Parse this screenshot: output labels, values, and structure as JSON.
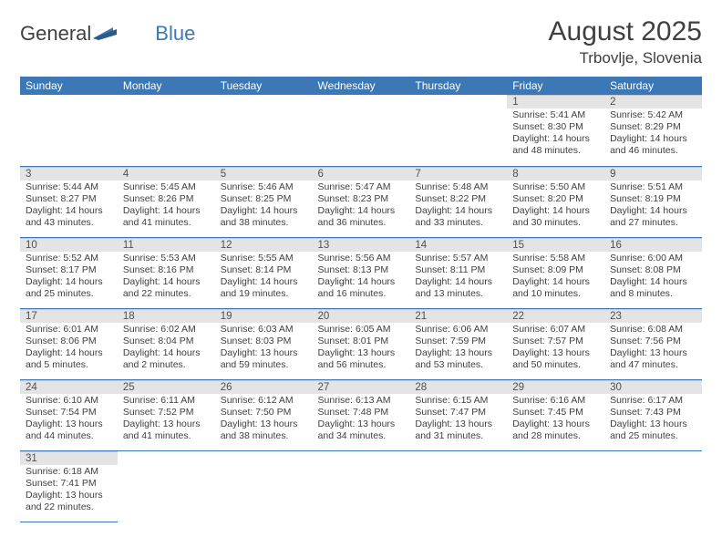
{
  "logo": {
    "text1": "General",
    "text2": "Blue"
  },
  "title": "August 2025",
  "location": "Trbovlje, Slovenia",
  "colors": {
    "header_bg": "#3b78b5",
    "header_fg": "#ffffff",
    "daynum_bg": "#e4e4e4",
    "row_border": "#3b78b5",
    "text": "#404040"
  },
  "weekdays": [
    "Sunday",
    "Monday",
    "Tuesday",
    "Wednesday",
    "Thursday",
    "Friday",
    "Saturday"
  ],
  "weeks": [
    [
      null,
      null,
      null,
      null,
      null,
      {
        "n": "1",
        "sr": "Sunrise: 5:41 AM",
        "ss": "Sunset: 8:30 PM",
        "d1": "Daylight: 14 hours",
        "d2": "and 48 minutes."
      },
      {
        "n": "2",
        "sr": "Sunrise: 5:42 AM",
        "ss": "Sunset: 8:29 PM",
        "d1": "Daylight: 14 hours",
        "d2": "and 46 minutes."
      }
    ],
    [
      {
        "n": "3",
        "sr": "Sunrise: 5:44 AM",
        "ss": "Sunset: 8:27 PM",
        "d1": "Daylight: 14 hours",
        "d2": "and 43 minutes."
      },
      {
        "n": "4",
        "sr": "Sunrise: 5:45 AM",
        "ss": "Sunset: 8:26 PM",
        "d1": "Daylight: 14 hours",
        "d2": "and 41 minutes."
      },
      {
        "n": "5",
        "sr": "Sunrise: 5:46 AM",
        "ss": "Sunset: 8:25 PM",
        "d1": "Daylight: 14 hours",
        "d2": "and 38 minutes."
      },
      {
        "n": "6",
        "sr": "Sunrise: 5:47 AM",
        "ss": "Sunset: 8:23 PM",
        "d1": "Daylight: 14 hours",
        "d2": "and 36 minutes."
      },
      {
        "n": "7",
        "sr": "Sunrise: 5:48 AM",
        "ss": "Sunset: 8:22 PM",
        "d1": "Daylight: 14 hours",
        "d2": "and 33 minutes."
      },
      {
        "n": "8",
        "sr": "Sunrise: 5:50 AM",
        "ss": "Sunset: 8:20 PM",
        "d1": "Daylight: 14 hours",
        "d2": "and 30 minutes."
      },
      {
        "n": "9",
        "sr": "Sunrise: 5:51 AM",
        "ss": "Sunset: 8:19 PM",
        "d1": "Daylight: 14 hours",
        "d2": "and 27 minutes."
      }
    ],
    [
      {
        "n": "10",
        "sr": "Sunrise: 5:52 AM",
        "ss": "Sunset: 8:17 PM",
        "d1": "Daylight: 14 hours",
        "d2": "and 25 minutes."
      },
      {
        "n": "11",
        "sr": "Sunrise: 5:53 AM",
        "ss": "Sunset: 8:16 PM",
        "d1": "Daylight: 14 hours",
        "d2": "and 22 minutes."
      },
      {
        "n": "12",
        "sr": "Sunrise: 5:55 AM",
        "ss": "Sunset: 8:14 PM",
        "d1": "Daylight: 14 hours",
        "d2": "and 19 minutes."
      },
      {
        "n": "13",
        "sr": "Sunrise: 5:56 AM",
        "ss": "Sunset: 8:13 PM",
        "d1": "Daylight: 14 hours",
        "d2": "and 16 minutes."
      },
      {
        "n": "14",
        "sr": "Sunrise: 5:57 AM",
        "ss": "Sunset: 8:11 PM",
        "d1": "Daylight: 14 hours",
        "d2": "and 13 minutes."
      },
      {
        "n": "15",
        "sr": "Sunrise: 5:58 AM",
        "ss": "Sunset: 8:09 PM",
        "d1": "Daylight: 14 hours",
        "d2": "and 10 minutes."
      },
      {
        "n": "16",
        "sr": "Sunrise: 6:00 AM",
        "ss": "Sunset: 8:08 PM",
        "d1": "Daylight: 14 hours",
        "d2": "and 8 minutes."
      }
    ],
    [
      {
        "n": "17",
        "sr": "Sunrise: 6:01 AM",
        "ss": "Sunset: 8:06 PM",
        "d1": "Daylight: 14 hours",
        "d2": "and 5 minutes."
      },
      {
        "n": "18",
        "sr": "Sunrise: 6:02 AM",
        "ss": "Sunset: 8:04 PM",
        "d1": "Daylight: 14 hours",
        "d2": "and 2 minutes."
      },
      {
        "n": "19",
        "sr": "Sunrise: 6:03 AM",
        "ss": "Sunset: 8:03 PM",
        "d1": "Daylight: 13 hours",
        "d2": "and 59 minutes."
      },
      {
        "n": "20",
        "sr": "Sunrise: 6:05 AM",
        "ss": "Sunset: 8:01 PM",
        "d1": "Daylight: 13 hours",
        "d2": "and 56 minutes."
      },
      {
        "n": "21",
        "sr": "Sunrise: 6:06 AM",
        "ss": "Sunset: 7:59 PM",
        "d1": "Daylight: 13 hours",
        "d2": "and 53 minutes."
      },
      {
        "n": "22",
        "sr": "Sunrise: 6:07 AM",
        "ss": "Sunset: 7:57 PM",
        "d1": "Daylight: 13 hours",
        "d2": "and 50 minutes."
      },
      {
        "n": "23",
        "sr": "Sunrise: 6:08 AM",
        "ss": "Sunset: 7:56 PM",
        "d1": "Daylight: 13 hours",
        "d2": "and 47 minutes."
      }
    ],
    [
      {
        "n": "24",
        "sr": "Sunrise: 6:10 AM",
        "ss": "Sunset: 7:54 PM",
        "d1": "Daylight: 13 hours",
        "d2": "and 44 minutes."
      },
      {
        "n": "25",
        "sr": "Sunrise: 6:11 AM",
        "ss": "Sunset: 7:52 PM",
        "d1": "Daylight: 13 hours",
        "d2": "and 41 minutes."
      },
      {
        "n": "26",
        "sr": "Sunrise: 6:12 AM",
        "ss": "Sunset: 7:50 PM",
        "d1": "Daylight: 13 hours",
        "d2": "and 38 minutes."
      },
      {
        "n": "27",
        "sr": "Sunrise: 6:13 AM",
        "ss": "Sunset: 7:48 PM",
        "d1": "Daylight: 13 hours",
        "d2": "and 34 minutes."
      },
      {
        "n": "28",
        "sr": "Sunrise: 6:15 AM",
        "ss": "Sunset: 7:47 PM",
        "d1": "Daylight: 13 hours",
        "d2": "and 31 minutes."
      },
      {
        "n": "29",
        "sr": "Sunrise: 6:16 AM",
        "ss": "Sunset: 7:45 PM",
        "d1": "Daylight: 13 hours",
        "d2": "and 28 minutes."
      },
      {
        "n": "30",
        "sr": "Sunrise: 6:17 AM",
        "ss": "Sunset: 7:43 PM",
        "d1": "Daylight: 13 hours",
        "d2": "and 25 minutes."
      }
    ],
    [
      {
        "n": "31",
        "sr": "Sunrise: 6:18 AM",
        "ss": "Sunset: 7:41 PM",
        "d1": "Daylight: 13 hours",
        "d2": "and 22 minutes."
      },
      null,
      null,
      null,
      null,
      null,
      null
    ]
  ]
}
